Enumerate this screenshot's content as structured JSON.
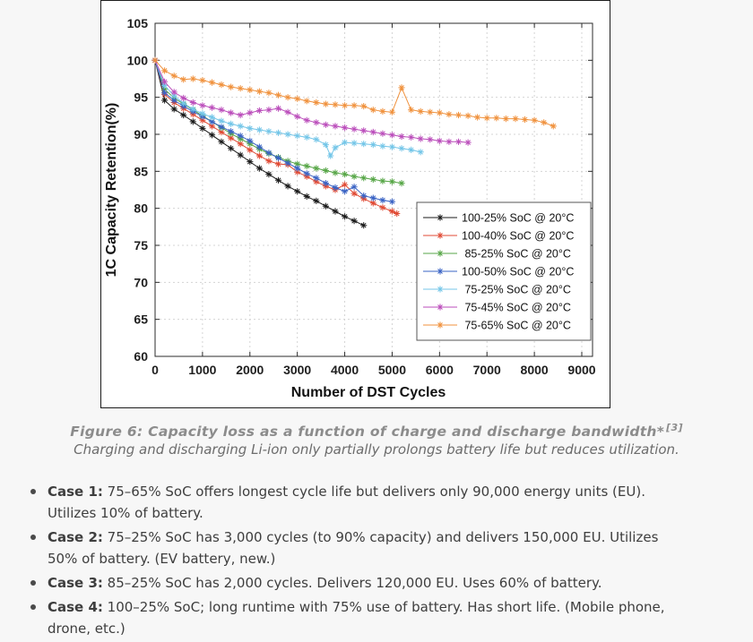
{
  "chart_data": {
    "type": "line",
    "title": "",
    "xlabel": "Number of DST Cycles",
    "ylabel": "1C Capacity Retention(%)",
    "xlim": [
      0,
      9000
    ],
    "ylim": [
      60,
      105
    ],
    "xticks": [
      0,
      1000,
      2000,
      3000,
      4000,
      5000,
      6000,
      7000,
      8000,
      9000
    ],
    "yticks": [
      60,
      65,
      70,
      75,
      80,
      85,
      90,
      95,
      100,
      105
    ],
    "grid": true,
    "grid_style": "dashed",
    "marker": "*",
    "legend_position": "lower right",
    "series": [
      {
        "id": "soc-100-25",
        "name": "100-25% SoC @ 20°C",
        "color": "#1a1a1a",
        "points": [
          [
            0,
            100
          ],
          [
            200,
            94.6
          ],
          [
            400,
            93.4
          ],
          [
            600,
            92.6
          ],
          [
            800,
            91.7
          ],
          [
            1000,
            90.8
          ],
          [
            1200,
            89.9
          ],
          [
            1400,
            89.0
          ],
          [
            1600,
            88.1
          ],
          [
            1800,
            87.2
          ],
          [
            2000,
            86.3
          ],
          [
            2200,
            85.4
          ],
          [
            2400,
            84.6
          ],
          [
            2600,
            83.8
          ],
          [
            2800,
            83.0
          ],
          [
            3000,
            82.3
          ],
          [
            3200,
            81.6
          ],
          [
            3400,
            81.0
          ],
          [
            3600,
            80.3
          ],
          [
            3800,
            79.6
          ],
          [
            4000,
            78.9
          ],
          [
            4200,
            78.3
          ],
          [
            4400,
            77.7
          ]
        ]
      },
      {
        "id": "soc-100-40",
        "name": "100-40% SoC @ 20°C",
        "color": "#e04a34",
        "points": [
          [
            0,
            100
          ],
          [
            200,
            95.4
          ],
          [
            400,
            94.3
          ],
          [
            600,
            93.5
          ],
          [
            800,
            92.7
          ],
          [
            1000,
            91.9
          ],
          [
            1200,
            91.1
          ],
          [
            1400,
            90.3
          ],
          [
            1600,
            89.5
          ],
          [
            1800,
            88.7
          ],
          [
            2000,
            87.9
          ],
          [
            2200,
            87.1
          ],
          [
            2400,
            86.4
          ],
          [
            2600,
            86.0
          ],
          [
            2800,
            85.9
          ],
          [
            3000,
            84.9
          ],
          [
            3200,
            84.3
          ],
          [
            3400,
            83.6
          ],
          [
            3600,
            83.0
          ],
          [
            3800,
            82.5
          ],
          [
            4000,
            83.2
          ],
          [
            4200,
            82.0
          ],
          [
            4400,
            81.3
          ],
          [
            4600,
            80.7
          ],
          [
            4800,
            80.1
          ],
          [
            5000,
            79.6
          ],
          [
            5100,
            79.3
          ]
        ]
      },
      {
        "id": "soc-85-25",
        "name": " 85-25% SoC @ 20°C",
        "color": "#57a647",
        "points": [
          [
            0,
            100
          ],
          [
            200,
            96.1
          ],
          [
            400,
            94.9
          ],
          [
            600,
            94.1
          ],
          [
            800,
            93.3
          ],
          [
            1000,
            92.5
          ],
          [
            1200,
            91.7
          ],
          [
            1400,
            90.9
          ],
          [
            1600,
            90.1
          ],
          [
            1800,
            89.4
          ],
          [
            2000,
            88.7
          ],
          [
            2200,
            88.0
          ],
          [
            2400,
            87.4
          ],
          [
            2600,
            86.9
          ],
          [
            2800,
            86.4
          ],
          [
            3000,
            86.0
          ],
          [
            3200,
            85.7
          ],
          [
            3400,
            85.4
          ],
          [
            3600,
            85.1
          ],
          [
            3800,
            84.8
          ],
          [
            4000,
            84.6
          ],
          [
            4200,
            84.3
          ],
          [
            4400,
            84.1
          ],
          [
            4600,
            83.9
          ],
          [
            4800,
            83.7
          ],
          [
            5000,
            83.6
          ],
          [
            5200,
            83.4
          ]
        ]
      },
      {
        "id": "soc-100-50",
        "name": "100-50% SoC @ 20°C",
        "color": "#3a63c4",
        "points": [
          [
            0,
            100
          ],
          [
            200,
            95.6
          ],
          [
            400,
            94.6
          ],
          [
            600,
            93.8
          ],
          [
            800,
            93.1
          ],
          [
            1000,
            92.4
          ],
          [
            1200,
            91.7
          ],
          [
            1400,
            91.0
          ],
          [
            1600,
            90.4
          ],
          [
            1800,
            89.8
          ],
          [
            2000,
            89.1
          ],
          [
            2200,
            88.3
          ],
          [
            2400,
            87.5
          ],
          [
            2600,
            86.8
          ],
          [
            2800,
            86.1
          ],
          [
            3000,
            85.4
          ],
          [
            3200,
            84.7
          ],
          [
            3400,
            84.1
          ],
          [
            3600,
            83.4
          ],
          [
            3800,
            82.8
          ],
          [
            4000,
            82.3
          ],
          [
            4200,
            82.9
          ],
          [
            4400,
            81.7
          ],
          [
            4600,
            81.4
          ],
          [
            4800,
            81.1
          ],
          [
            5000,
            80.9
          ]
        ]
      },
      {
        "id": "soc-75-25",
        "name": " 75-25% SoC @ 20°C",
        "color": "#74c6e8",
        "points": [
          [
            0,
            100
          ],
          [
            200,
            96.6
          ],
          [
            400,
            95.2
          ],
          [
            600,
            94.2
          ],
          [
            800,
            93.4
          ],
          [
            1000,
            92.8
          ],
          [
            1200,
            92.3
          ],
          [
            1400,
            91.8
          ],
          [
            1600,
            91.4
          ],
          [
            1800,
            91.1
          ],
          [
            2000,
            90.8
          ],
          [
            2200,
            90.6
          ],
          [
            2400,
            90.4
          ],
          [
            2600,
            90.2
          ],
          [
            2800,
            90.0
          ],
          [
            3000,
            89.8
          ],
          [
            3200,
            89.6
          ],
          [
            3400,
            89.3
          ],
          [
            3600,
            88.6
          ],
          [
            3700,
            87.1
          ],
          [
            3800,
            88.2
          ],
          [
            4000,
            88.9
          ],
          [
            4200,
            88.8
          ],
          [
            4400,
            88.7
          ],
          [
            4600,
            88.6
          ],
          [
            4800,
            88.4
          ],
          [
            5000,
            88.3
          ],
          [
            5200,
            88.1
          ],
          [
            5400,
            87.9
          ],
          [
            5600,
            87.6
          ]
        ]
      },
      {
        "id": "soc-75-45",
        "name": " 75-45% SoC @ 20°C",
        "color": "#bb4ebb",
        "points": [
          [
            0,
            100
          ],
          [
            200,
            97.1
          ],
          [
            400,
            95.7
          ],
          [
            600,
            94.9
          ],
          [
            800,
            94.3
          ],
          [
            1000,
            93.9
          ],
          [
            1200,
            93.6
          ],
          [
            1400,
            93.3
          ],
          [
            1600,
            92.9
          ],
          [
            1800,
            92.6
          ],
          [
            2000,
            92.9
          ],
          [
            2200,
            93.2
          ],
          [
            2400,
            93.3
          ],
          [
            2600,
            93.5
          ],
          [
            2800,
            93.0
          ],
          [
            3000,
            92.4
          ],
          [
            3200,
            91.9
          ],
          [
            3400,
            91.6
          ],
          [
            3600,
            91.3
          ],
          [
            3800,
            91.1
          ],
          [
            4000,
            90.9
          ],
          [
            4200,
            90.7
          ],
          [
            4400,
            90.5
          ],
          [
            4600,
            90.3
          ],
          [
            4800,
            90.1
          ],
          [
            5000,
            89.9
          ],
          [
            5200,
            89.7
          ],
          [
            5400,
            89.6
          ],
          [
            5600,
            89.4
          ],
          [
            5800,
            89.3
          ],
          [
            6000,
            89.1
          ],
          [
            6200,
            89.0
          ],
          [
            6400,
            89.0
          ],
          [
            6600,
            88.9
          ]
        ]
      },
      {
        "id": "soc-75-65",
        "name": " 75-65% SoC @ 20°C",
        "color": "#f0923e",
        "points": [
          [
            0,
            100
          ],
          [
            200,
            98.6
          ],
          [
            400,
            97.9
          ],
          [
            600,
            97.4
          ],
          [
            800,
            97.5
          ],
          [
            1000,
            97.3
          ],
          [
            1200,
            97.0
          ],
          [
            1400,
            96.7
          ],
          [
            1600,
            96.4
          ],
          [
            1800,
            96.2
          ],
          [
            2000,
            96.0
          ],
          [
            2200,
            95.8
          ],
          [
            2400,
            95.6
          ],
          [
            2600,
            95.3
          ],
          [
            2800,
            95.0
          ],
          [
            3000,
            94.8
          ],
          [
            3200,
            94.5
          ],
          [
            3400,
            94.3
          ],
          [
            3600,
            94.1
          ],
          [
            3800,
            94.0
          ],
          [
            4000,
            93.9
          ],
          [
            4200,
            93.9
          ],
          [
            4400,
            93.8
          ],
          [
            4600,
            93.3
          ],
          [
            4800,
            93.1
          ],
          [
            5000,
            93.0
          ],
          [
            5200,
            96.3
          ],
          [
            5400,
            93.3
          ],
          [
            5600,
            93.1
          ],
          [
            5800,
            93.0
          ],
          [
            6000,
            92.9
          ],
          [
            6200,
            92.7
          ],
          [
            6400,
            92.6
          ],
          [
            6600,
            92.5
          ],
          [
            6800,
            92.3
          ],
          [
            7000,
            92.2
          ],
          [
            7200,
            92.2
          ],
          [
            7400,
            92.1
          ],
          [
            7600,
            92.1
          ],
          [
            7800,
            92.0
          ],
          [
            8000,
            91.9
          ],
          [
            8200,
            91.6
          ],
          [
            8400,
            91.1
          ]
        ]
      }
    ]
  },
  "caption": {
    "title": "Figure 6: Capacity loss as a function of charge and discharge bandwidth*",
    "ref": "[3]",
    "subtitle": "Charging and discharging Li-ion only partially prolongs battery life but reduces utilization."
  },
  "cases": [
    {
      "label": "Case 1:",
      "text": "75–65% SoC offers longest cycle life but delivers only 90,000 energy units (EU). Utilizes 10% of battery."
    },
    {
      "label": "Case 2:",
      "text": "75–25% SoC has 3,000 cycles (to 90% capacity) and delivers 150,000 EU. Utilizes 50% of battery. (EV battery, new.)"
    },
    {
      "label": "Case 3:",
      "text": "85–25% SoC has 2,000 cycles. Delivers 120,000 EU. Uses 60% of battery."
    },
    {
      "label": "Case 4:",
      "text": "100–25% SoC; long runtime with 75% use of battery. Has short life. (Mobile phone, drone, etc.)"
    }
  ]
}
